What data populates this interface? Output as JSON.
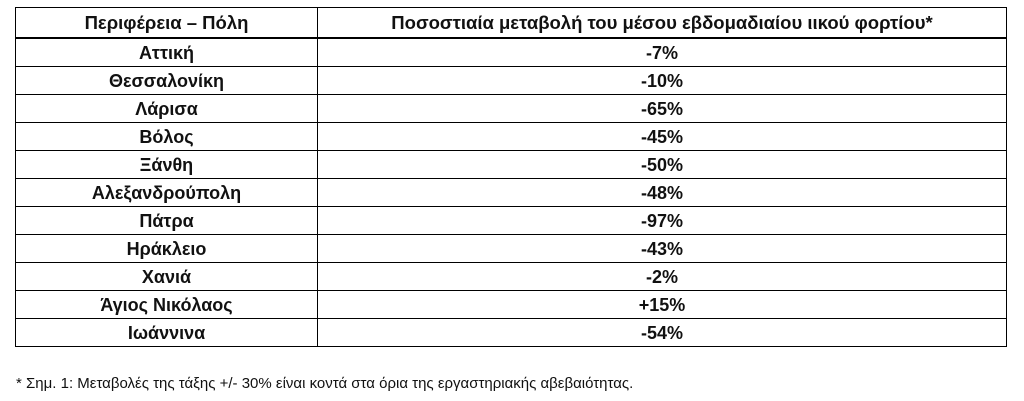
{
  "table": {
    "headers": {
      "region": "Περιφέρεια – Πόλη",
      "change": "Ποσοστιαία μεταβολή του μέσου εβδομαδιαίου ιικού φορτίου*"
    },
    "rows": [
      {
        "region": "Αττική",
        "change": "-7%"
      },
      {
        "region": "Θεσσαλονίκη",
        "change": "-10%"
      },
      {
        "region": "Λάρισα",
        "change": "-65%"
      },
      {
        "region": "Βόλος",
        "change": "-45%"
      },
      {
        "region": "Ξάνθη",
        "change": "-50%"
      },
      {
        "region": "Αλεξανδρούπολη",
        "change": "-48%"
      },
      {
        "region": "Πάτρα",
        "change": "-97%"
      },
      {
        "region": "Ηράκλειο",
        "change": "-43%"
      },
      {
        "region": "Χανιά",
        "change": "-2%"
      },
      {
        "region": "Άγιος Νικόλαος",
        "change": "+15%"
      },
      {
        "region": "Ιωάννινα",
        "change": "-54%"
      }
    ]
  },
  "footnote": "* Σημ. 1: Μεταβολές της τάξης +/- 30% είναι κοντά στα όρια της εργαστηριακής αβεβαιότητας."
}
